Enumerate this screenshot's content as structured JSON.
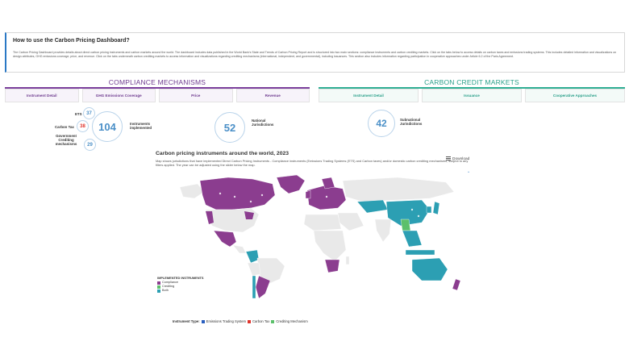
{
  "info": {
    "title": "How to use the Carbon Pricing Dashboard?",
    "text": "The Carbon Pricing Dashboard provides details about direct carbon pricing instruments and carbon markets around the world. The dashboard includes data published in the World Bank's State and Trends of Carbon Pricing Report and is structured into two main sections: compliance instruments and carbon crediting markets. Click on the tabs below to access details on carbon taxes and emissions trading systems. This includes detailed information and visualizations on design attributes, GHG emissions coverage, price, and revenue. Click on the tabs underneath carbon crediting markets to access information and visualizations regarding crediting mechanisms (international, independent, and governmental), including issuances. This section also includes information regarding participation in cooperative approaches under Article 6.2 of the Paris Agreement."
  },
  "compliance": {
    "heading": "COMPLIANCE MECHANISMS",
    "tabs": [
      "Instrument Detail",
      "GHG Emissions Coverage",
      "Price",
      "Revenue"
    ],
    "stats": {
      "ets_label": "ETS",
      "ets_value": "37",
      "tax_label": "Carbon Tax",
      "tax_value": "38",
      "gov_label": "Government Crediting mechanisms",
      "gov_value": "29",
      "total_value": "104",
      "total_label": "Instruments implemented",
      "national_value": "52",
      "national_label": "National Jurisdictions"
    }
  },
  "credit": {
    "heading": "CARBON CREDIT MARKETS",
    "tabs": [
      "Instrument Detail",
      "Issuance",
      "Cooperative Approaches"
    ],
    "subnational_value": "42",
    "subnational_label": "Subnational Jurisdictions"
  },
  "map": {
    "title": "Carbon pricing instruments around the world, 2023",
    "description": "Map shows jurisdictions that have implemented Direct Carbon Pricing Instruments - Compliance instruments (Emissions Trading Systems (ETS) and Carbon taxes) and/or domestic carbon crediting mechanisms, subject to any filters applied. The year can be adjusted using the slider below the map.",
    "download_label": "Download",
    "zoom_in": "+",
    "zoom_out": "−",
    "legend": {
      "title": "IMPLEMENTED INSTRUMENTS",
      "items": [
        {
          "label": "Compliance",
          "color": "#8b3d8f"
        },
        {
          "label": "Crediting",
          "color": "#5cc06b"
        },
        {
          "label": "Both",
          "color": "#2c9fb3"
        }
      ]
    }
  },
  "instrument_types": {
    "label": "Instrument Type:",
    "items": [
      {
        "label": "Emissions Trading System",
        "color": "#2a5fbf"
      },
      {
        "label": "Carbon Tax",
        "color": "#e0342c"
      },
      {
        "label": "Crediting Mechanism",
        "color": "#5cc06b"
      }
    ]
  },
  "colors": {
    "compliance": "#8b3d8f",
    "crediting": "#5cc06b",
    "both": "#2c9fb3",
    "land": "#e9e9e9"
  }
}
